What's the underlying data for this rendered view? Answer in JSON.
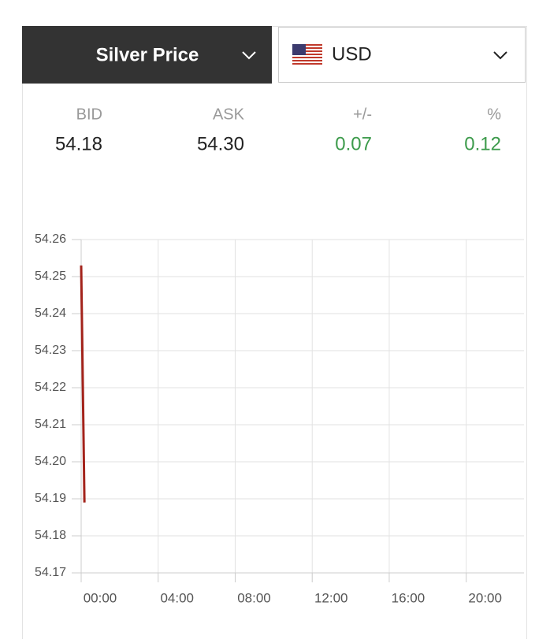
{
  "selector": {
    "metal": "Silver Price",
    "currency": "USD"
  },
  "quote": {
    "headers": [
      "BID",
      "ASK",
      "+/-",
      "%"
    ],
    "values": [
      "54.18",
      "54.30",
      "0.07",
      "0.12"
    ]
  },
  "chart_data": {
    "type": "line",
    "x": [
      0,
      0.17
    ],
    "series": [
      {
        "color": "#a3231b",
        "values": [
          54.253,
          54.189
        ]
      }
    ],
    "xlim": [
      0,
      23
    ],
    "xticks": [
      {
        "value": 0,
        "label": "00:00"
      },
      {
        "value": 4,
        "label": "04:00"
      },
      {
        "value": 8,
        "label": "08:00"
      },
      {
        "value": 12,
        "label": "12:00"
      },
      {
        "value": 16,
        "label": "16:00"
      },
      {
        "value": 20,
        "label": "20:00"
      }
    ],
    "ylim": [
      54.17,
      54.26
    ],
    "yticks": [
      54.17,
      54.18,
      54.19,
      {
        "value": 54.2,
        "label": "54.20"
      },
      54.21,
      54.22,
      54.23,
      54.24,
      54.25,
      54.26
    ],
    "grid": true
  }
}
